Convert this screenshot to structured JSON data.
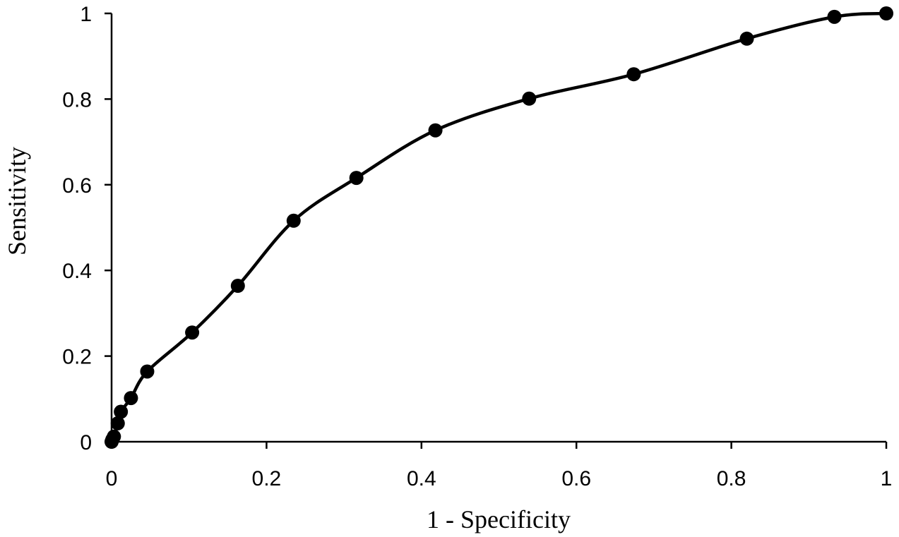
{
  "chart_data": {
    "type": "scatter",
    "title": "",
    "xlabel": "1 - Specificity",
    "ylabel": "Sensitivity",
    "xlim": [
      0,
      1
    ],
    "ylim": [
      0,
      1
    ],
    "xticks": [
      "0",
      "0.2",
      "0.4",
      "0.6",
      "0.8",
      "1"
    ],
    "yticks": [
      "0",
      "0.2",
      "0.4",
      "0.6",
      "0.8",
      "1"
    ],
    "grid": false,
    "legend": "none",
    "line": "smoothed",
    "marker": "filled-circle",
    "color": "#000000",
    "series": [
      {
        "x": [
          0,
          0.001,
          0.003,
          0.008,
          0.012,
          0.025,
          0.046,
          0.104,
          0.163,
          0.235,
          0.316,
          0.418,
          0.539,
          0.674,
          0.82,
          0.933,
          1
        ],
        "y": [
          0,
          0.005,
          0.012,
          0.043,
          0.07,
          0.102,
          0.164,
          0.255,
          0.364,
          0.516,
          0.616,
          0.727,
          0.801,
          0.858,
          0.941,
          0.992,
          1
        ]
      }
    ]
  }
}
